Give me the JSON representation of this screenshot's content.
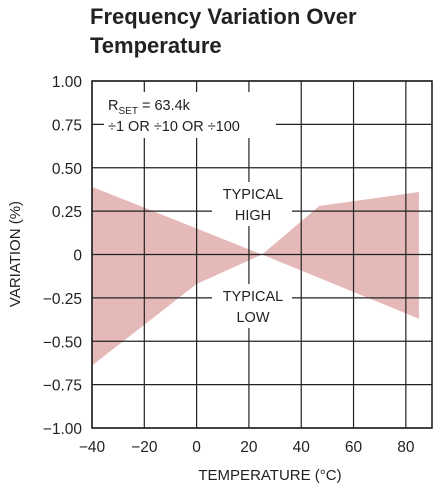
{
  "chart_data": {
    "type": "area",
    "title": "Frequency Variation Over Temperature",
    "title_lines": [
      "Frequency Variation Over",
      "Temperature"
    ],
    "xlabel": "TEMPERATURE (°C)",
    "ylabel": "VARIATION (%)",
    "xlim": [
      -40,
      90
    ],
    "ylim": [
      -1.0,
      1.0
    ],
    "x_ticks": [
      -40,
      -20,
      0,
      20,
      40,
      60,
      80
    ],
    "x_tick_labels": [
      "−40",
      "−20",
      "0",
      "20",
      "40",
      "60",
      "80"
    ],
    "y_ticks": [
      1.0,
      0.75,
      0.5,
      0.25,
      0,
      -0.25,
      -0.5,
      -0.75,
      -1.0
    ],
    "y_tick_labels": [
      "1.00",
      "0.75",
      "0.50",
      "0.25",
      "0",
      "−0.25",
      "−0.50",
      "−0.75",
      "−1.00"
    ],
    "grid": true,
    "band_color": "#e4b9b7",
    "series": [
      {
        "name": "TYPICAL HIGH",
        "x": [
          -40,
          25,
          47,
          85
        ],
        "y": [
          0.39,
          0.0,
          0.28,
          0.36
        ]
      },
      {
        "name": "TYPICAL LOW",
        "x": [
          -40,
          0,
          25,
          85
        ],
        "y": [
          -0.64,
          -0.17,
          0.0,
          -0.37
        ]
      }
    ],
    "annotations": {
      "rset_prefix": "R",
      "rset_sub": "SET",
      "rset_value": " = 63.4k",
      "divider": "÷1 OR ÷10 OR ÷100",
      "high_line1": "TYPICAL",
      "high_line2": "HIGH",
      "low_line1": "TYPICAL",
      "low_line2": "LOW"
    }
  }
}
